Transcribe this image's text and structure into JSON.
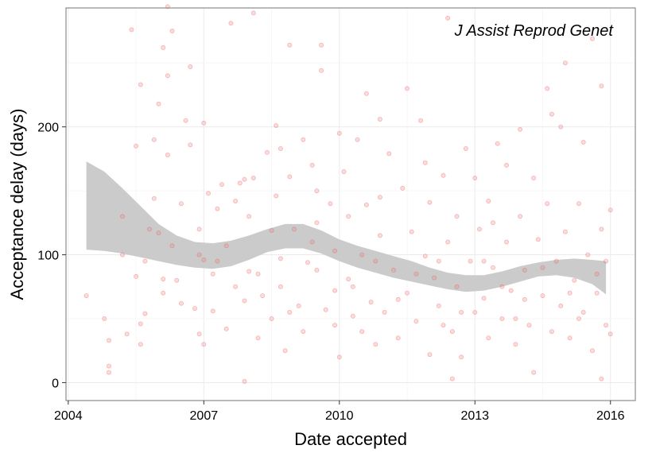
{
  "chart_data": {
    "type": "scatter",
    "title": "",
    "annotation": "J Assist Reprod Genet",
    "xlabel": "Date accepted",
    "ylabel": "Acceptance delay (days)",
    "xlim": [
      2003.95,
      2016.55
    ],
    "ylim": [
      -14,
      293
    ],
    "x_ticks": [
      2004,
      2007,
      2010,
      2013,
      2016
    ],
    "x_tick_labels": [
      "2004",
      "2007",
      "2010",
      "2013",
      "2016"
    ],
    "y_ticks": [
      0,
      100,
      200
    ],
    "y_tick_labels": [
      "0",
      "100",
      "200"
    ],
    "grid": true,
    "point_color": "#f08080",
    "point_stroke": "#e84a4a",
    "band_color": "#c8c8c8",
    "smooth_upper": [
      [
        2004.4,
        173
      ],
      [
        2004.8,
        165
      ],
      [
        2005.2,
        152
      ],
      [
        2005.6,
        138
      ],
      [
        2006.0,
        124
      ],
      [
        2006.4,
        115
      ],
      [
        2006.8,
        110
      ],
      [
        2007.2,
        109
      ],
      [
        2007.6,
        111
      ],
      [
        2008.0,
        115
      ],
      [
        2008.4,
        120
      ],
      [
        2008.8,
        124
      ],
      [
        2009.2,
        124
      ],
      [
        2009.6,
        119
      ],
      [
        2010.0,
        112
      ],
      [
        2010.4,
        107
      ],
      [
        2010.8,
        103
      ],
      [
        2011.2,
        99
      ],
      [
        2011.6,
        95
      ],
      [
        2012.0,
        90
      ],
      [
        2012.4,
        86
      ],
      [
        2012.8,
        84
      ],
      [
        2013.2,
        84
      ],
      [
        2013.6,
        87
      ],
      [
        2014.0,
        91
      ],
      [
        2014.4,
        94
      ],
      [
        2014.8,
        96
      ],
      [
        2015.2,
        97
      ],
      [
        2015.6,
        96
      ],
      [
        2015.9,
        95
      ]
    ],
    "smooth_lower": [
      [
        2004.4,
        104
      ],
      [
        2004.8,
        103
      ],
      [
        2005.2,
        101
      ],
      [
        2005.6,
        98
      ],
      [
        2006.0,
        95
      ],
      [
        2006.4,
        92
      ],
      [
        2006.8,
        90
      ],
      [
        2007.2,
        89
      ],
      [
        2007.6,
        91
      ],
      [
        2008.0,
        96
      ],
      [
        2008.4,
        102
      ],
      [
        2008.8,
        105
      ],
      [
        2009.2,
        105
      ],
      [
        2009.6,
        101
      ],
      [
        2010.0,
        95
      ],
      [
        2010.4,
        90
      ],
      [
        2010.8,
        86
      ],
      [
        2011.2,
        82
      ],
      [
        2011.6,
        79
      ],
      [
        2012.0,
        76
      ],
      [
        2012.4,
        73
      ],
      [
        2012.8,
        71
      ],
      [
        2013.2,
        72
      ],
      [
        2013.6,
        75
      ],
      [
        2014.0,
        79
      ],
      [
        2014.4,
        83
      ],
      [
        2014.8,
        84
      ],
      [
        2015.2,
        82
      ],
      [
        2015.6,
        77
      ],
      [
        2015.9,
        69
      ]
    ],
    "points": [
      [
        2004.4,
        68
      ],
      [
        2004.9,
        13
      ],
      [
        2004.9,
        8
      ],
      [
        2004.9,
        33
      ],
      [
        2005.2,
        100
      ],
      [
        2005.3,
        38
      ],
      [
        2005.4,
        276
      ],
      [
        2005.5,
        185
      ],
      [
        2005.5,
        83
      ],
      [
        2005.6,
        46
      ],
      [
        2005.6,
        30
      ],
      [
        2005.6,
        233
      ],
      [
        2005.7,
        54
      ],
      [
        2005.8,
        120
      ],
      [
        2005.9,
        190
      ],
      [
        2005.9,
        144
      ],
      [
        2006.0,
        218
      ],
      [
        2006.0,
        117
      ],
      [
        2006.1,
        81
      ],
      [
        2006.1,
        70
      ],
      [
        2006.1,
        262
      ],
      [
        2006.2,
        294
      ],
      [
        2006.2,
        240
      ],
      [
        2006.2,
        178
      ],
      [
        2006.3,
        275
      ],
      [
        2006.3,
        107
      ],
      [
        2006.4,
        80
      ],
      [
        2006.5,
        140
      ],
      [
        2006.6,
        205
      ],
      [
        2006.7,
        186
      ],
      [
        2006.7,
        247
      ],
      [
        2006.8,
        58
      ],
      [
        2006.9,
        120
      ],
      [
        2006.9,
        38
      ],
      [
        2007.0,
        203
      ],
      [
        2007.0,
        96
      ],
      [
        2007.0,
        30
      ],
      [
        2007.1,
        148
      ],
      [
        2007.2,
        85
      ],
      [
        2007.2,
        56
      ],
      [
        2007.3,
        136
      ],
      [
        2007.4,
        155
      ],
      [
        2007.5,
        107
      ],
      [
        2007.5,
        42
      ],
      [
        2007.6,
        281
      ],
      [
        2007.7,
        75
      ],
      [
        2007.8,
        156
      ],
      [
        2007.9,
        64
      ],
      [
        2007.9,
        1
      ],
      [
        2008.0,
        130
      ],
      [
        2008.0,
        87
      ],
      [
        2008.1,
        289
      ],
      [
        2008.1,
        160
      ],
      [
        2008.2,
        35
      ],
      [
        2008.3,
        68
      ],
      [
        2008.4,
        180
      ],
      [
        2008.5,
        119
      ],
      [
        2008.5,
        50
      ],
      [
        2008.6,
        146
      ],
      [
        2008.7,
        97
      ],
      [
        2008.7,
        75
      ],
      [
        2008.7,
        183
      ],
      [
        2008.8,
        25
      ],
      [
        2008.9,
        264
      ],
      [
        2008.9,
        161
      ],
      [
        2009.0,
        120
      ],
      [
        2009.1,
        60
      ],
      [
        2009.2,
        190
      ],
      [
        2009.2,
        40
      ],
      [
        2009.3,
        94
      ],
      [
        2009.4,
        170
      ],
      [
        2009.5,
        150
      ],
      [
        2009.5,
        88
      ],
      [
        2009.6,
        264
      ],
      [
        2009.6,
        244
      ],
      [
        2009.7,
        57
      ],
      [
        2009.8,
        140
      ],
      [
        2009.9,
        103
      ],
      [
        2009.9,
        45
      ],
      [
        2010.0,
        195
      ],
      [
        2010.0,
        20
      ],
      [
        2010.1,
        165
      ],
      [
        2010.2,
        81
      ],
      [
        2010.2,
        130
      ],
      [
        2010.3,
        52
      ],
      [
        2010.4,
        190
      ],
      [
        2010.5,
        100
      ],
      [
        2010.5,
        40
      ],
      [
        2010.6,
        226
      ],
      [
        2010.6,
        139
      ],
      [
        2010.7,
        63
      ],
      [
        2010.8,
        30
      ],
      [
        2010.9,
        206
      ],
      [
        2010.9,
        115
      ],
      [
        2011.0,
        55
      ],
      [
        2011.1,
        179
      ],
      [
        2011.2,
        88
      ],
      [
        2011.3,
        35
      ],
      [
        2011.4,
        152
      ],
      [
        2011.5,
        230
      ],
      [
        2011.5,
        70
      ],
      [
        2011.6,
        118
      ],
      [
        2011.7,
        48
      ],
      [
        2011.8,
        205
      ],
      [
        2011.9,
        99
      ],
      [
        2012.0,
        141
      ],
      [
        2012.0,
        22
      ],
      [
        2012.1,
        82
      ],
      [
        2012.2,
        60
      ],
      [
        2012.3,
        162
      ],
      [
        2012.4,
        285
      ],
      [
        2012.4,
        110
      ],
      [
        2012.5,
        40
      ],
      [
        2012.6,
        130
      ],
      [
        2012.6,
        75
      ],
      [
        2012.7,
        20
      ],
      [
        2012.8,
        183
      ],
      [
        2012.9,
        95
      ],
      [
        2013.0,
        55
      ],
      [
        2013.0,
        160
      ],
      [
        2013.1,
        120
      ],
      [
        2013.2,
        66
      ],
      [
        2013.3,
        35
      ],
      [
        2013.3,
        142
      ],
      [
        2013.4,
        90
      ],
      [
        2013.5,
        187
      ],
      [
        2013.6,
        50
      ],
      [
        2013.7,
        110
      ],
      [
        2013.7,
        170
      ],
      [
        2013.8,
        72
      ],
      [
        2013.9,
        30
      ],
      [
        2014.0,
        198
      ],
      [
        2014.0,
        130
      ],
      [
        2014.1,
        88
      ],
      [
        2014.2,
        45
      ],
      [
        2014.3,
        160
      ],
      [
        2014.3,
        8
      ],
      [
        2014.4,
        112
      ],
      [
        2014.5,
        68
      ],
      [
        2014.6,
        230
      ],
      [
        2014.6,
        140
      ],
      [
        2014.7,
        40
      ],
      [
        2014.8,
        95
      ],
      [
        2014.9,
        200
      ],
      [
        2014.9,
        60
      ],
      [
        2015.0,
        250
      ],
      [
        2015.0,
        118
      ],
      [
        2015.1,
        35
      ],
      [
        2015.2,
        80
      ],
      [
        2015.3,
        140
      ],
      [
        2015.4,
        188
      ],
      [
        2015.4,
        55
      ],
      [
        2015.5,
        100
      ],
      [
        2015.6,
        269
      ],
      [
        2015.6,
        25
      ],
      [
        2015.7,
        70
      ],
      [
        2015.8,
        232
      ],
      [
        2015.8,
        120
      ],
      [
        2015.9,
        45
      ],
      [
        2015.9,
        95
      ],
      [
        2016.0,
        135
      ],
      [
        2016.0,
        38
      ],
      [
        2004.8,
        50
      ],
      [
        2005.2,
        130
      ],
      [
        2005.7,
        95
      ],
      [
        2006.5,
        62
      ],
      [
        2007.3,
        95
      ],
      [
        2007.7,
        142
      ],
      [
        2008.2,
        85
      ],
      [
        2008.9,
        55
      ],
      [
        2009.4,
        110
      ],
      [
        2010.3,
        75
      ],
      [
        2010.8,
        95
      ],
      [
        2011.3,
        65
      ],
      [
        2011.7,
        85
      ],
      [
        2012.2,
        95
      ],
      [
        2012.7,
        55
      ],
      [
        2013.2,
        95
      ],
      [
        2013.6,
        75
      ],
      [
        2014.1,
        65
      ],
      [
        2014.5,
        90
      ],
      [
        2015.1,
        70
      ],
      [
        2015.7,
        85
      ],
      [
        2012.5,
        3
      ],
      [
        2015.8,
        3
      ],
      [
        2007.9,
        159
      ],
      [
        2008.6,
        201
      ],
      [
        2009.5,
        125
      ],
      [
        2010.9,
        145
      ],
      [
        2011.9,
        172
      ],
      [
        2013.4,
        125
      ],
      [
        2014.7,
        210
      ],
      [
        2006.9,
        100
      ],
      [
        2009.9,
        72
      ],
      [
        2012.3,
        45
      ],
      [
        2013.9,
        50
      ],
      [
        2015.3,
        50
      ]
    ]
  }
}
